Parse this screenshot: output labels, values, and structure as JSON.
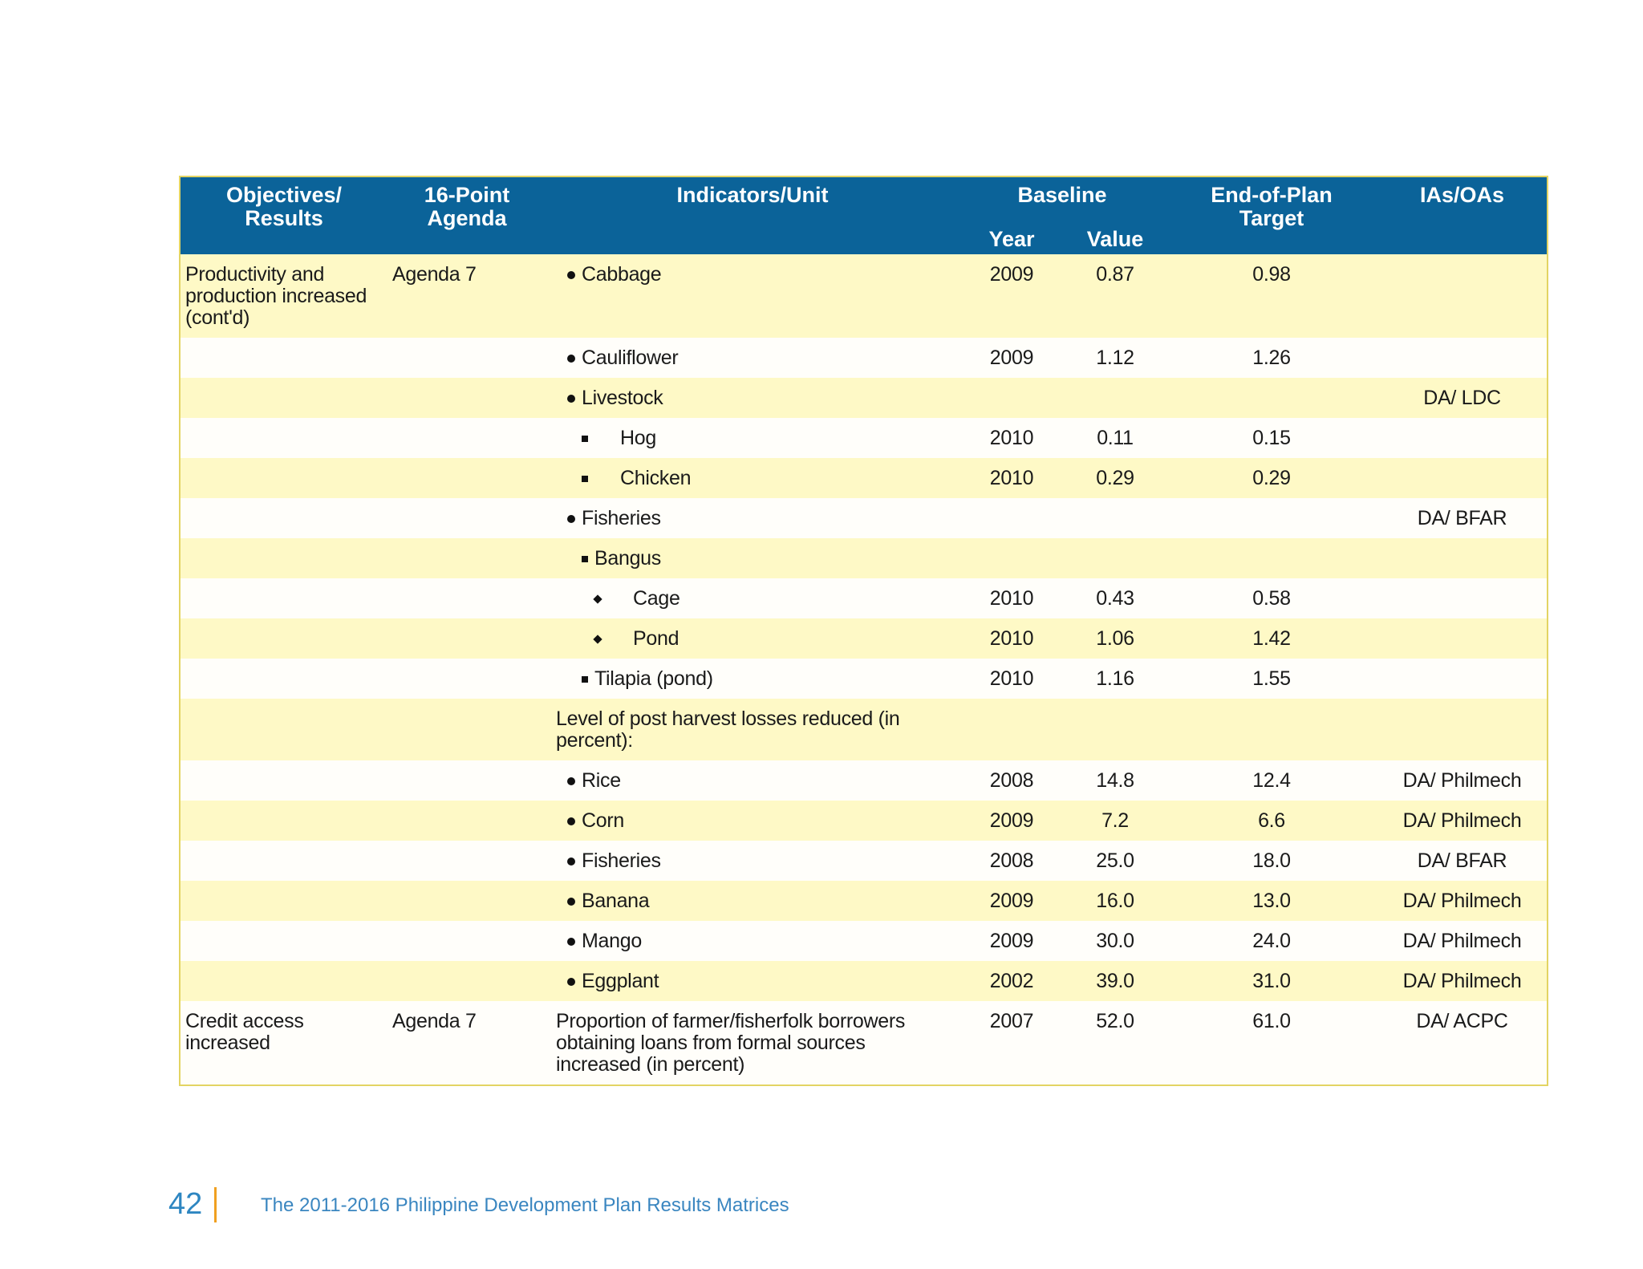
{
  "table": {
    "header": {
      "objectives": "Objectives/\nResults",
      "agenda": "16-Point\nAgenda",
      "indicators": "Indicators/Unit",
      "baseline": "Baseline",
      "year": "Year",
      "value": "Value",
      "target": "End-of-Plan\nTarget",
      "ias": "IAs/OAs"
    },
    "rows": [
      [
        "Productivity and production increased (cont'd)",
        "Agenda 7",
        "Cabbage",
        "2009",
        "0.87",
        "0.98",
        null
      ],
      [
        null,
        null,
        "Cauliflower",
        "2009",
        "1.12",
        "1.26",
        null
      ],
      [
        null,
        null,
        "Livestock",
        null,
        null,
        null,
        "DA/ LDC"
      ],
      [
        null,
        null,
        "Hog",
        "2010",
        "0.11",
        "0.15",
        null
      ],
      [
        null,
        null,
        "Chicken",
        "2010",
        "0.29",
        "0.29",
        null
      ],
      [
        null,
        null,
        "Fisheries",
        null,
        null,
        null,
        "DA/ BFAR"
      ],
      [
        null,
        null,
        "Bangus",
        null,
        null,
        null,
        null
      ],
      [
        null,
        null,
        "Cage",
        "2010",
        "0.43",
        "0.58",
        null
      ],
      [
        null,
        null,
        "Pond",
        "2010",
        "1.06",
        "1.42",
        null
      ],
      [
        null,
        null,
        "Tilapia (pond)",
        "2010",
        "1.16",
        "1.55",
        null
      ],
      [
        null,
        null,
        "Level of post harvest losses reduced (in percent):",
        null,
        null,
        null,
        null
      ],
      [
        null,
        null,
        "Rice",
        "2008",
        "14.8",
        "12.4",
        "DA/ Philmech"
      ],
      [
        null,
        null,
        "Corn",
        "2009",
        "7.2",
        "6.6",
        "DA/ Philmech"
      ],
      [
        null,
        null,
        "Fisheries",
        "2008",
        "25.0",
        "18.0",
        "DA/ BFAR"
      ],
      [
        null,
        null,
        "Banana",
        "2009",
        "16.0",
        "13.0",
        "DA/ Philmech"
      ],
      [
        null,
        null,
        "Mango",
        "2009",
        "30.0",
        "24.0",
        "DA/ Philmech"
      ],
      [
        null,
        null,
        "Eggplant",
        "2002",
        "39.0",
        "31.0",
        "DA/ Philmech"
      ],
      [
        "Credit access increased",
        "Agenda 7",
        "Proportion of farmer/fisherfolk borrowers obtaining loans  from formal sources increased (in percent)",
        "2007",
        "52.0",
        "61.0",
        "DA/ ACPC"
      ]
    ]
  },
  "footer": {
    "page_number": "42",
    "title": "The 2011-2016 Philippine Development Plan Results Matrices"
  }
}
